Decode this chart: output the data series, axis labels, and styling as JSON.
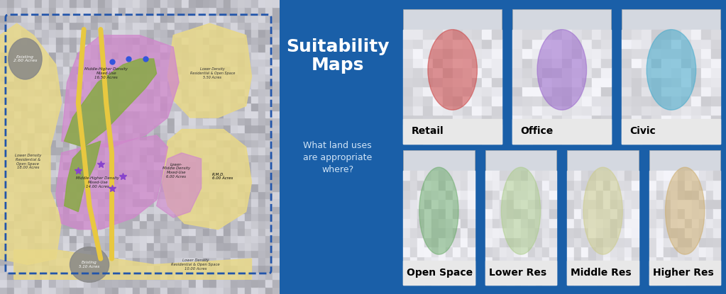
{
  "fig_width": 10.23,
  "fig_height": 4.15,
  "dpi": 100,
  "right_panel_bg": "#1a5fa8",
  "title_text": "Suitability\nMaps",
  "subtitle_text": "What land uses\nare appropriate\nwhere?",
  "title_color": "#ffffff",
  "subtitle_color": "#d0e4f7",
  "grid_labels_row1": [
    "Retail",
    "Office",
    "Civic"
  ],
  "grid_labels_row2": [
    "Open Space",
    "Lower Res",
    "Middle Res",
    "Higher Res"
  ],
  "overlay_colors_row1": [
    "#cc4444",
    "#9966cc",
    "#44aacc"
  ],
  "overlay_colors_row2": [
    "#66aa66",
    "#aacc88",
    "#cccc88",
    "#ccaa66"
  ],
  "map_placeholder_color": "#b8bcc4",
  "left_zone_purple": "#d088cc",
  "left_zone_yellow": "#e8d888",
  "left_zone_green": "#88aa44",
  "left_zone_gray": "#888888",
  "left_road_color": "#e8c840"
}
